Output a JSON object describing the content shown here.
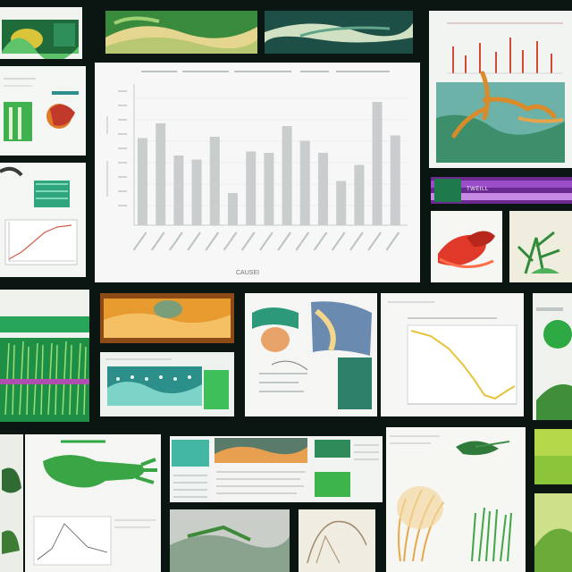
{
  "main_chart": {
    "caption": "CAUSEI"
  },
  "banner": {
    "text": "TWEILL"
  },
  "colors": {
    "background": "#0b1512",
    "bar_fill": "#c9cdcd",
    "accent_green": "#2ea843",
    "accent_purple": "#8b3fb5",
    "accent_teal": "#2c8f8a",
    "accent_orange": "#d97a1f",
    "accent_red": "#e0392a",
    "line_yellow": "#e6c33a"
  }
}
